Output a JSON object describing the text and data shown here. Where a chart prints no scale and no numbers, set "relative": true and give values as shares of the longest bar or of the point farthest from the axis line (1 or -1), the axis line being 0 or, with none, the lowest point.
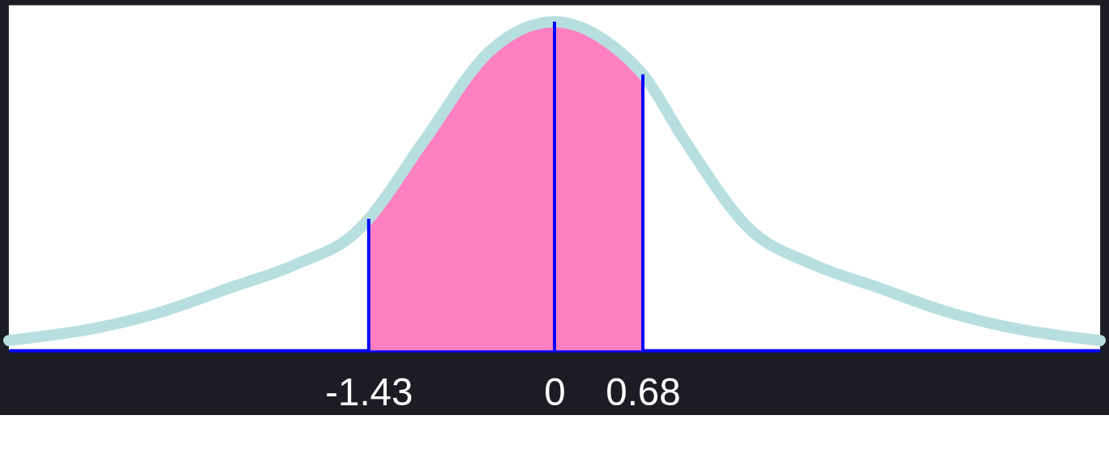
{
  "chart_data": {
    "type": "line",
    "relative": true,
    "grid": false,
    "xlim": [
      -4.2,
      4.2
    ],
    "xticks": [
      -1.43,
      0,
      0.68
    ],
    "series": [
      {
        "type": "area",
        "color": "#ff80c0",
        "x": [
          -1.43,
          -1,
          -0.5,
          0,
          0.5,
          0.68
        ],
        "values": [
          0.4,
          0.64,
          0.91,
          1.0,
          0.91,
          0.84
        ]
      },
      {
        "color": "#b7dfe0",
        "x": [
          -4.2,
          -3.5,
          -3,
          -2.5,
          -2,
          -1.5,
          -1.43,
          -1,
          -0.5,
          0,
          0.5,
          0.68,
          1,
          1.5,
          2,
          2.5,
          3,
          3.5,
          4.2
        ],
        "values": [
          0.03,
          0.07,
          0.12,
          0.19,
          0.26,
          0.37,
          0.4,
          0.64,
          0.91,
          1.0,
          0.91,
          0.84,
          0.64,
          0.37,
          0.26,
          0.19,
          0.12,
          0.07,
          0.03
        ]
      }
    ],
    "ref_lines": [
      {
        "axis": "x",
        "value": -1.43,
        "color": "#0000ff"
      },
      {
        "axis": "x",
        "value": 0,
        "color": "#0000ff"
      },
      {
        "axis": "x",
        "value": 0.68,
        "color": "#0000ff"
      }
    ]
  }
}
